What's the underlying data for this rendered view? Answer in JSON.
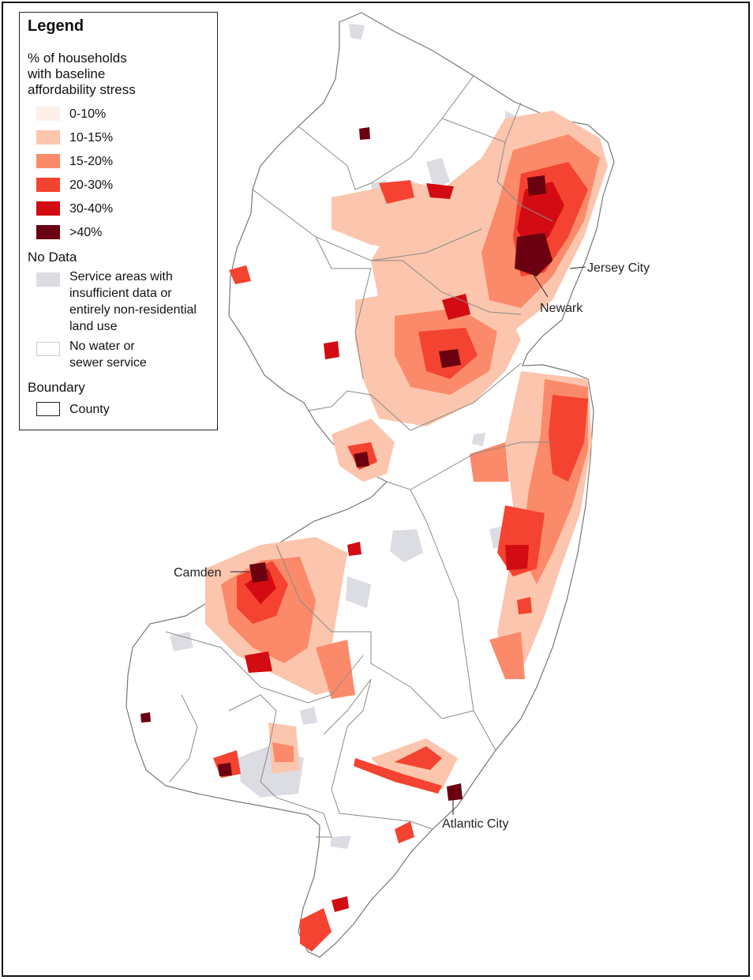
{
  "legend": {
    "title": "Legend",
    "heading": [
      "% of households",
      "with baseline",
      "affordability stress"
    ],
    "classes": [
      {
        "label": "0-10%",
        "color": "#fdf0e9"
      },
      {
        "label": "10-15%",
        "color": "#fcc5ad"
      },
      {
        "label": "15-20%",
        "color": "#fb8a6a"
      },
      {
        "label": "20-30%",
        "color": "#f44330"
      },
      {
        "label": "30-40%",
        "color": "#d30b12"
      },
      {
        "label": ">40%",
        "color": "#6b0010"
      }
    ],
    "no_data_heading": "No Data",
    "no_data_items": [
      {
        "lines": [
          "Service areas with",
          "insufficient data or",
          "entirely non-residential",
          "land use"
        ],
        "color": "#dcdce3"
      },
      {
        "lines": [
          "No water or",
          "sewer service"
        ],
        "color": "#ffffff"
      }
    ],
    "boundary_heading": "Boundary",
    "boundary_item": "County"
  },
  "cities": {
    "jersey_city": "Jersey City",
    "newark": "Newark",
    "camden": "Camden",
    "atlantic_city": "Atlantic City"
  },
  "colors": {
    "state_fill": "#ffffff",
    "county_line": "#8a8a8a",
    "no_data": "#dcdce3"
  }
}
